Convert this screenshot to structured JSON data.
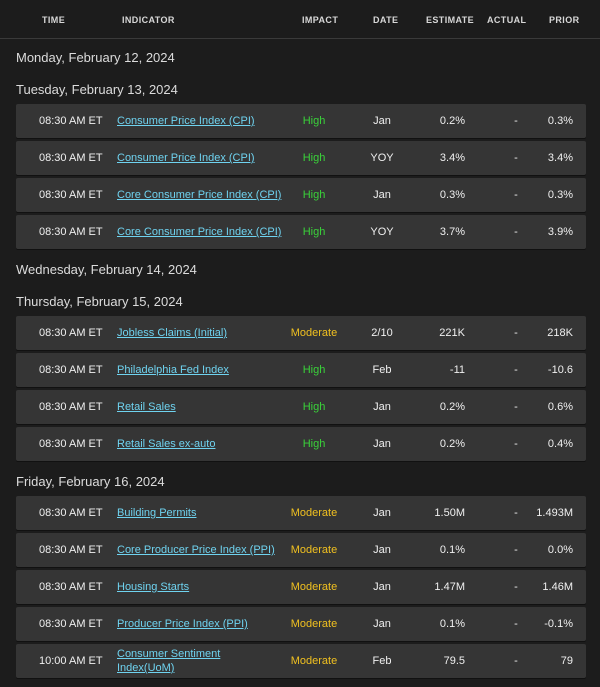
{
  "header": {
    "time": "TIME",
    "indicator": "INDICATOR",
    "impact": "IMPACT",
    "date": "DATE",
    "estimate": "ESTIMATE",
    "actual": "ACTUAL",
    "prior": "PRIOR"
  },
  "days": [
    {
      "label": "Monday, February 12, 2024"
    },
    {
      "label": "Tuesday, February 13, 2024"
    },
    {
      "label": "Wednesday, February 14, 2024"
    },
    {
      "label": "Thursday, February 15, 2024"
    },
    {
      "label": "Friday, February 16, 2024"
    }
  ],
  "rows": [
    {
      "time": "08:30 AM ET",
      "indicator": "Consumer Price Index (CPI)",
      "impact": "High",
      "date": "Jan",
      "estimate": "0.2%",
      "actual": "-",
      "prior": "0.3%"
    },
    {
      "time": "08:30 AM ET",
      "indicator": "Consumer Price Index (CPI)",
      "impact": "High",
      "date": "YOY",
      "estimate": "3.4%",
      "actual": "-",
      "prior": "3.4%"
    },
    {
      "time": "08:30 AM ET",
      "indicator": "Core Consumer Price Index (CPI)",
      "impact": "High",
      "date": "Jan",
      "estimate": "0.3%",
      "actual": "-",
      "prior": "0.3%"
    },
    {
      "time": "08:30 AM ET",
      "indicator": "Core Consumer Price Index (CPI)",
      "impact": "High",
      "date": "YOY",
      "estimate": "3.7%",
      "actual": "-",
      "prior": "3.9%"
    },
    {
      "time": "08:30 AM ET",
      "indicator": "Jobless Claims (Initial)",
      "impact": "Moderate",
      "date": "2/10",
      "estimate": "221K",
      "actual": "-",
      "prior": "218K"
    },
    {
      "time": "08:30 AM ET",
      "indicator": "Philadelphia Fed Index",
      "impact": "High",
      "date": "Feb",
      "estimate": "-11",
      "actual": "-",
      "prior": "-10.6"
    },
    {
      "time": "08:30 AM ET",
      "indicator": "Retail Sales",
      "impact": "High",
      "date": "Jan",
      "estimate": "0.2%",
      "actual": "-",
      "prior": "0.6%"
    },
    {
      "time": "08:30 AM ET",
      "indicator": "Retail Sales ex-auto",
      "impact": "High",
      "date": "Jan",
      "estimate": "0.2%",
      "actual": "-",
      "prior": "0.4%"
    },
    {
      "time": "08:30 AM ET",
      "indicator": "Building Permits",
      "impact": "Moderate",
      "date": "Jan",
      "estimate": "1.50M",
      "actual": "-",
      "prior": "1.493M"
    },
    {
      "time": "08:30 AM ET",
      "indicator": "Core Producer Price Index (PPI)",
      "impact": "Moderate",
      "date": "Jan",
      "estimate": "0.1%",
      "actual": "-",
      "prior": "0.0%"
    },
    {
      "time": "08:30 AM ET",
      "indicator": "Housing Starts",
      "impact": "Moderate",
      "date": "Jan",
      "estimate": "1.47M",
      "actual": "-",
      "prior": "1.46M"
    },
    {
      "time": "08:30 AM ET",
      "indicator": "Producer Price Index (PPI)",
      "impact": "Moderate",
      "date": "Jan",
      "estimate": "0.1%",
      "actual": "-",
      "prior": "-0.1%"
    },
    {
      "time": "10:00 AM ET",
      "indicator": "Consumer Sentiment Index(UoM)",
      "impact": "Moderate",
      "date": "Feb",
      "estimate": "79.5",
      "actual": "-",
      "prior": "79"
    }
  ],
  "colors": {
    "high": "#3ad13a",
    "moderate": "#f0c020",
    "link": "#6fd3f0"
  }
}
